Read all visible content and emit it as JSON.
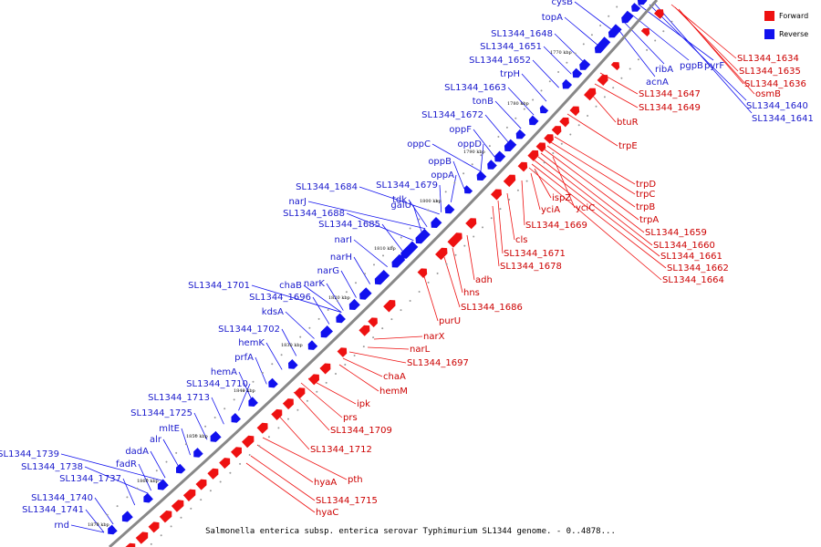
{
  "diagram": {
    "title": "Salmonella enterica subsp. enterica serovar Typhimurium SL1344 genome. - 0..4878...",
    "colors": {
      "forward": "#ee1111",
      "reverse": "#1111ee",
      "backbone": "#888888"
    },
    "legend": [
      {
        "label": "Forward",
        "color": "#ee1111"
      },
      {
        "label": "Reverse",
        "color": "#1111ee"
      }
    ],
    "ticks": [
      "1770 kbp",
      "1780 kbp",
      "1790 kbp",
      "1800 kbp",
      "1810 kbp",
      "1820 kbp",
      "1830 kbp",
      "1840 kbp",
      "1850 kbp",
      "1860 kbp",
      "1870 kbp"
    ],
    "reverse_labels": [
      "cysB",
      "topA",
      "SL1344_1648",
      "SL1344_1651",
      "SL1344_1652",
      "trpH",
      "SL1344_1663",
      "tonB",
      "SL1344_1672",
      "oppF",
      "oppC",
      "oppD",
      "oppB",
      "oppA",
      "SL1344_1679",
      "SL1344_1684",
      "tdk",
      "galU",
      "narJ",
      "SL1344_1688",
      "SL1344_1685",
      "narI",
      "narH",
      "narG",
      "narK",
      "SL1344_1701",
      "chaB",
      "SL1344_1696",
      "kdsA",
      "SL1344_1702",
      "hemK",
      "prfA",
      "hemA",
      "SL1344_1710",
      "SL1344_1713",
      "SL1344_1725",
      "mltE",
      "alr",
      "dadA",
      "SL1344_1739",
      "fadR",
      "SL1344_1738",
      "SL1344_1737",
      "SL1344_1740",
      "SL1344_1741",
      "rnd"
    ],
    "reverse_labels_right": [
      "pyrF",
      "pgpB",
      "ribA",
      "acnA",
      "SL1344_1640",
      "SL1344_1641"
    ],
    "forward_labels": [
      "SL1344_1634",
      "SL1344_1635",
      "SL1344_1636",
      "osmB",
      "SL1344_1647",
      "SL1344_1649",
      "btuR",
      "trpE",
      "trpD",
      "trpC",
      "trpB",
      "trpA",
      "SL1344_1659",
      "SL1344_1660",
      "SL1344_1661",
      "SL1344_1662",
      "SL1344_1664",
      "yciC",
      "ispZ",
      "yciA",
      "SL1344_1669",
      "cls",
      "SL1344_1671",
      "SL1344_1678",
      "adh",
      "hns",
      "SL1344_1686",
      "purU",
      "narX",
      "narL",
      "SL1344_1697",
      "chaA",
      "hemM",
      "ipk",
      "prs",
      "SL1344_1709",
      "SL1344_1712",
      "pth",
      "hyaA",
      "SL1344_1715",
      "hyaC"
    ]
  }
}
